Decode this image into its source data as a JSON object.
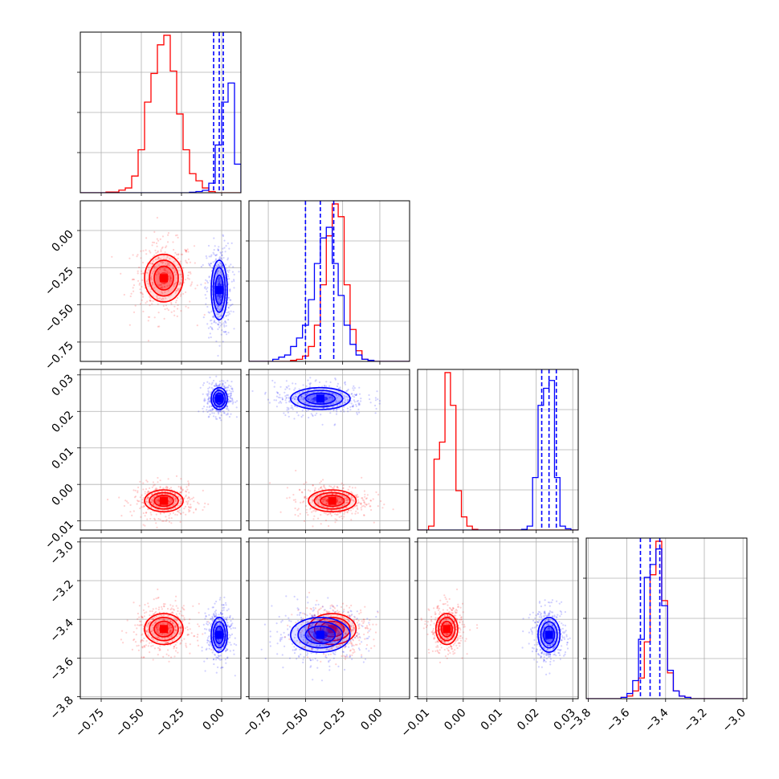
{
  "chart_data": {
    "type": "corner",
    "title": "",
    "parameters": [
      {
        "ticks": [
          -0.75,
          -0.5,
          -0.25,
          0.0
        ],
        "tick_labels": [
          "−0.75",
          "−0.50",
          "−0.25",
          "0.00"
        ],
        "range": [
          -0.88,
          0.12
        ]
      },
      {
        "ticks": [
          -0.75,
          -0.5,
          -0.25,
          0.0
        ],
        "tick_labels": [
          "−0.75",
          "−0.50",
          "−0.25",
          "0.00"
        ],
        "range": [
          -0.88,
          0.2
        ]
      },
      {
        "ticks": [
          -0.01,
          0.0,
          0.01,
          0.02,
          0.03
        ],
        "tick_labels": [
          "−0.01",
          "0.00",
          "0.01",
          "0.02",
          "0.03"
        ],
        "range": [
          -0.0125,
          0.0315
        ]
      },
      {
        "ticks": [
          -3.8,
          -3.6,
          -3.4,
          -3.2,
          -3.0
        ],
        "tick_labels": [
          "−3.8",
          "−3.6",
          "−3.4",
          "−3.2",
          "−3.0"
        ],
        "range": [
          -3.81,
          -2.98
        ]
      }
    ],
    "series": [
      {
        "color": "#ff0000",
        "mean": [
          -0.36,
          -0.32,
          -0.0045,
          -3.45
        ],
        "std": [
          0.06,
          0.08,
          0.0015,
          0.04
        ]
      },
      {
        "color": "#0000ff",
        "mean": [
          -0.015,
          -0.4,
          0.0235,
          -3.48
        ],
        "std": [
          0.025,
          0.1,
          0.0015,
          0.045
        ],
        "quantiles": [
          [
            -0.05,
            -0.015,
            0.01
          ],
          [
            -0.5,
            -0.4,
            -0.31
          ],
          [
            0.0215,
            0.0235,
            0.0255
          ],
          [
            -3.53,
            -3.48,
            -3.43
          ]
        ]
      }
    ],
    "histograms": {
      "0": {
        "bin_edges": [
          -0.88,
          -0.84,
          -0.8,
          -0.76,
          -0.72,
          -0.68,
          -0.64,
          -0.6,
          -0.56,
          -0.52,
          -0.48,
          -0.44,
          -0.4,
          -0.36,
          -0.32,
          -0.28,
          -0.24,
          -0.2,
          -0.16,
          -0.12,
          -0.08,
          -0.04,
          0.0,
          0.04,
          0.08,
          0.12
        ],
        "red": [
          0,
          0,
          0,
          0,
          0.3,
          0.3,
          1.1,
          2,
          7,
          18,
          38,
          50,
          62,
          66,
          51,
          33,
          18,
          8,
          5,
          2,
          0.5,
          0,
          0,
          0,
          0
        ],
        "blue": [
          0,
          0,
          0,
          0,
          0,
          0,
          0,
          0,
          0,
          0,
          0,
          0,
          0,
          0,
          0,
          0,
          0,
          0.2,
          0.5,
          1,
          4,
          20,
          38,
          46,
          12
        ]
      },
      "1": {
        "bin_edges": [
          -0.88,
          -0.84,
          -0.8,
          -0.76,
          -0.72,
          -0.68,
          -0.64,
          -0.6,
          -0.56,
          -0.52,
          -0.48,
          -0.44,
          -0.4,
          -0.36,
          -0.32,
          -0.28,
          -0.24,
          -0.2,
          -0.16,
          -0.12,
          -0.08,
          -0.04,
          0.0,
          0.04,
          0.08,
          0.12,
          0.16,
          0.2
        ],
        "red": [
          0,
          0,
          0,
          0,
          0,
          0,
          0,
          0.5,
          1,
          2.5,
          7,
          17,
          36,
          59,
          74,
          68,
          36,
          15,
          5,
          1,
          0.5,
          0,
          0,
          0,
          0,
          0,
          0
        ],
        "blue": [
          0,
          0,
          0,
          0,
          1,
          2,
          3,
          7,
          11,
          17,
          29,
          46,
          58,
          63,
          46,
          31,
          17,
          8,
          3,
          1,
          0.5,
          0,
          0,
          0,
          0,
          0,
          0
        ]
      },
      "2": {
        "bin_edges": [
          -0.0125,
          -0.011,
          -0.0095,
          -0.008,
          -0.0065,
          -0.005,
          -0.0035,
          -0.002,
          -0.0005,
          0.001,
          0.0025,
          0.004,
          0.0055,
          0.007,
          0.0085,
          0.01,
          0.0115,
          0.013,
          0.0145,
          0.016,
          0.0175,
          0.019,
          0.0205,
          0.022,
          0.0235,
          0.025,
          0.0265,
          0.028,
          0.0295,
          0.0315
        ],
        "red": [
          0,
          0,
          3,
          54,
          67,
          120,
          95,
          30,
          10,
          3,
          0.5,
          0,
          0,
          0,
          0,
          0,
          0,
          0,
          0,
          0,
          0,
          0,
          0,
          0,
          0,
          0,
          0,
          0,
          0
        ],
        "blue": [
          0,
          0,
          0,
          0,
          0,
          0,
          0,
          0,
          0,
          0,
          0,
          0,
          0,
          0,
          0,
          0,
          0,
          0,
          0,
          0.5,
          3,
          40,
          95,
          108,
          114,
          40,
          3,
          1,
          0
        ]
      },
      "3": {
        "bin_edges": [
          -3.81,
          -3.78,
          -3.75,
          -3.72,
          -3.69,
          -3.66,
          -3.63,
          -3.6,
          -3.57,
          -3.54,
          -3.51,
          -3.48,
          -3.45,
          -3.42,
          -3.39,
          -3.36,
          -3.33,
          -3.3,
          -3.27,
          -3.24,
          -3.21,
          -3.18,
          -3.15,
          -3.12,
          -3.09,
          -3.06,
          -3.03,
          -3.0
        ],
        "red": [
          0,
          0,
          0,
          0,
          0,
          0,
          0.5,
          1,
          3,
          8,
          22,
          48,
          61,
          38,
          10,
          3,
          1,
          0.5,
          0,
          0,
          0,
          0,
          0,
          0,
          0,
          0,
          0
        ],
        "blue": [
          0,
          0,
          0,
          0,
          0,
          0,
          0.5,
          2,
          7,
          23,
          47,
          52,
          58,
          36,
          11,
          3,
          1,
          0.5,
          0,
          0,
          0,
          0,
          0,
          0,
          0,
          0,
          0
        ]
      }
    },
    "contour_levels_sigma": [
      0.5,
      1.0,
      1.5,
      2.0
    ],
    "grid": true
  }
}
